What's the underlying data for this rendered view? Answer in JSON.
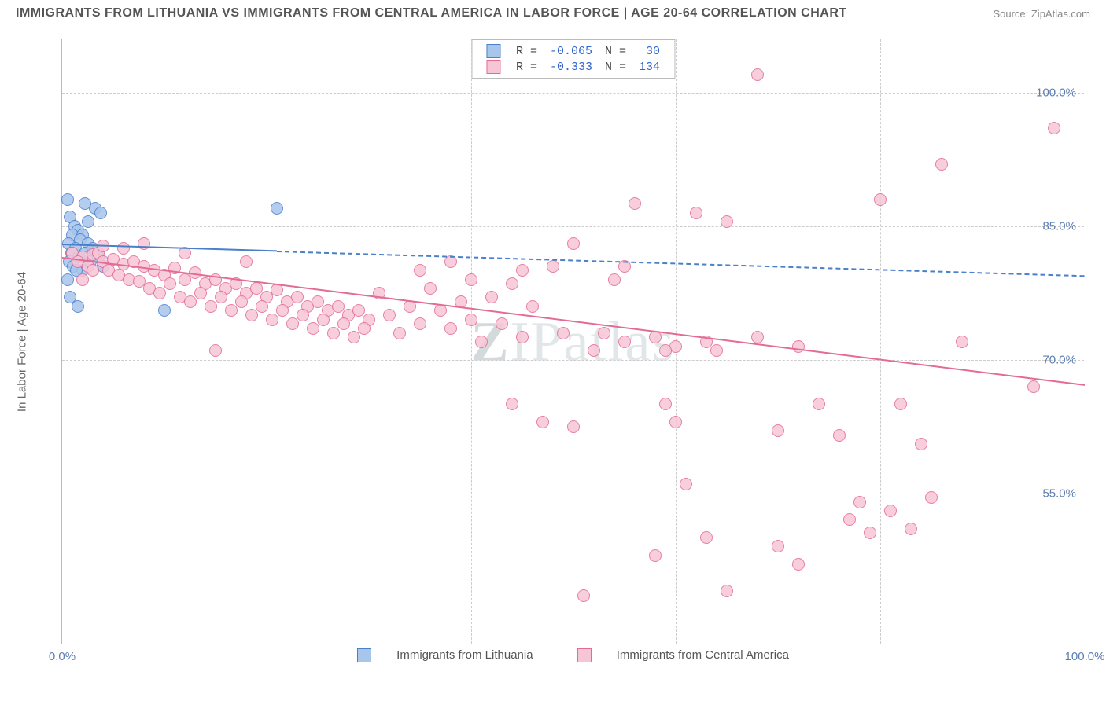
{
  "header": {
    "title": "IMMIGRANTS FROM LITHUANIA VS IMMIGRANTS FROM CENTRAL AMERICA IN LABOR FORCE | AGE 20-64 CORRELATION CHART",
    "source_prefix": "Source: ",
    "source_name": "ZipAtlas.com"
  },
  "watermark": {
    "z": "Z",
    "rest": "IPatlas"
  },
  "chart": {
    "type": "scatter",
    "y_axis_title": "In Labor Force | Age 20-64",
    "background_color": "#ffffff",
    "grid_color": "#cccccc",
    "axis_color": "#bbbbbb",
    "tick_label_color": "#5b7db1",
    "tick_fontsize": 15,
    "title_fontsize": 16,
    "title_color": "#555555",
    "xlim": [
      0,
      100
    ],
    "ylim": [
      38,
      106
    ],
    "xticks": [
      {
        "v": 0,
        "label": "0.0%"
      },
      {
        "v": 20,
        "label": ""
      },
      {
        "v": 40,
        "label": ""
      },
      {
        "v": 60,
        "label": ""
      },
      {
        "v": 80,
        "label": ""
      },
      {
        "v": 100,
        "label": "100.0%"
      }
    ],
    "yticks": [
      {
        "v": 55,
        "label": "55.0%"
      },
      {
        "v": 70,
        "label": "70.0%"
      },
      {
        "v": 85,
        "label": "85.0%"
      },
      {
        "v": 100,
        "label": "100.0%"
      }
    ],
    "marker_radius": 8,
    "marker_border_width": 1.5,
    "marker_fill_opacity": 0.25,
    "series": [
      {
        "id": "lithuania",
        "name": "Immigrants from Lithuania",
        "color_border": "#4a7fc9",
        "color_fill": "#a8c5ec",
        "correlation_R": "-0.065",
        "N": "30",
        "trend": {
          "x1": 0,
          "y1": 83.0,
          "x2": 100,
          "y2": 79.5,
          "solid_until_x": 21,
          "line_width": 2.5
        },
        "points": [
          {
            "x": 0.5,
            "y": 88
          },
          {
            "x": 0.8,
            "y": 86
          },
          {
            "x": 1.2,
            "y": 85
          },
          {
            "x": 1.5,
            "y": 84.5
          },
          {
            "x": 1.0,
            "y": 84
          },
          {
            "x": 2.0,
            "y": 84
          },
          {
            "x": 1.8,
            "y": 83.5
          },
          {
            "x": 0.6,
            "y": 83
          },
          {
            "x": 2.5,
            "y": 83
          },
          {
            "x": 1.3,
            "y": 82.5
          },
          {
            "x": 0.9,
            "y": 82
          },
          {
            "x": 2.2,
            "y": 82
          },
          {
            "x": 3.0,
            "y": 82.5
          },
          {
            "x": 1.6,
            "y": 81.5
          },
          {
            "x": 0.7,
            "y": 81
          },
          {
            "x": 2.8,
            "y": 81
          },
          {
            "x": 3.5,
            "y": 81.5
          },
          {
            "x": 1.1,
            "y": 80.5
          },
          {
            "x": 2.0,
            "y": 80
          },
          {
            "x": 4.0,
            "y": 80.5
          },
          {
            "x": 1.4,
            "y": 80
          },
          {
            "x": 0.5,
            "y": 79
          },
          {
            "x": 3.2,
            "y": 87
          },
          {
            "x": 3.8,
            "y": 86.5
          },
          {
            "x": 2.2,
            "y": 87.5
          },
          {
            "x": 21,
            "y": 87
          },
          {
            "x": 1.5,
            "y": 76
          },
          {
            "x": 10,
            "y": 75.5
          },
          {
            "x": 0.8,
            "y": 77
          },
          {
            "x": 2.5,
            "y": 85.5
          }
        ]
      },
      {
        "id": "central_america",
        "name": "Immigrants from Central America",
        "color_border": "#e36b94",
        "color_fill": "#f7c6d6",
        "correlation_R": "-0.333",
        "N": "134",
        "trend": {
          "x1": 0,
          "y1": 81.5,
          "x2": 100,
          "y2": 67.2,
          "solid_until_x": 100,
          "line_width": 2.5
        },
        "points": [
          {
            "x": 1,
            "y": 82
          },
          {
            "x": 2,
            "y": 81.5
          },
          {
            "x": 3,
            "y": 81.8
          },
          {
            "x": 1.5,
            "y": 81
          },
          {
            "x": 2.5,
            "y": 80.5
          },
          {
            "x": 3.5,
            "y": 82
          },
          {
            "x": 4,
            "y": 81
          },
          {
            "x": 5,
            "y": 81.3
          },
          {
            "x": 4.5,
            "y": 80
          },
          {
            "x": 6,
            "y": 80.7
          },
          {
            "x": 5.5,
            "y": 79.5
          },
          {
            "x": 7,
            "y": 81
          },
          {
            "x": 6.5,
            "y": 79
          },
          {
            "x": 8,
            "y": 80.5
          },
          {
            "x": 7.5,
            "y": 78.8
          },
          {
            "x": 9,
            "y": 80
          },
          {
            "x": 8.5,
            "y": 78
          },
          {
            "x": 10,
            "y": 79.5
          },
          {
            "x": 9.5,
            "y": 77.5
          },
          {
            "x": 11,
            "y": 80.3
          },
          {
            "x": 10.5,
            "y": 78.5
          },
          {
            "x": 12,
            "y": 79
          },
          {
            "x": 11.5,
            "y": 77
          },
          {
            "x": 13,
            "y": 79.8
          },
          {
            "x": 12.5,
            "y": 76.5
          },
          {
            "x": 14,
            "y": 78.5
          },
          {
            "x": 13.5,
            "y": 77.5
          },
          {
            "x": 15,
            "y": 79
          },
          {
            "x": 14.5,
            "y": 76
          },
          {
            "x": 16,
            "y": 78
          },
          {
            "x": 15.5,
            "y": 77
          },
          {
            "x": 17,
            "y": 78.5
          },
          {
            "x": 16.5,
            "y": 75.5
          },
          {
            "x": 18,
            "y": 77.5
          },
          {
            "x": 17.5,
            "y": 76.5
          },
          {
            "x": 19,
            "y": 78
          },
          {
            "x": 18.5,
            "y": 75
          },
          {
            "x": 20,
            "y": 77
          },
          {
            "x": 19.5,
            "y": 76
          },
          {
            "x": 21,
            "y": 77.8
          },
          {
            "x": 20.5,
            "y": 74.5
          },
          {
            "x": 22,
            "y": 76.5
          },
          {
            "x": 21.5,
            "y": 75.5
          },
          {
            "x": 23,
            "y": 77
          },
          {
            "x": 22.5,
            "y": 74
          },
          {
            "x": 24,
            "y": 76
          },
          {
            "x": 23.5,
            "y": 75
          },
          {
            "x": 25,
            "y": 76.5
          },
          {
            "x": 24.5,
            "y": 73.5
          },
          {
            "x": 26,
            "y": 75.5
          },
          {
            "x": 25.5,
            "y": 74.5
          },
          {
            "x": 27,
            "y": 76
          },
          {
            "x": 26.5,
            "y": 73
          },
          {
            "x": 28,
            "y": 75
          },
          {
            "x": 27.5,
            "y": 74
          },
          {
            "x": 29,
            "y": 75.5
          },
          {
            "x": 28.5,
            "y": 72.5
          },
          {
            "x": 30,
            "y": 74.5
          },
          {
            "x": 29.5,
            "y": 73.5
          },
          {
            "x": 31,
            "y": 77.5
          },
          {
            "x": 32,
            "y": 75
          },
          {
            "x": 33,
            "y": 73
          },
          {
            "x": 34,
            "y": 76
          },
          {
            "x": 35,
            "y": 74
          },
          {
            "x": 36,
            "y": 78
          },
          {
            "x": 37,
            "y": 75.5
          },
          {
            "x": 38,
            "y": 73.5
          },
          {
            "x": 39,
            "y": 76.5
          },
          {
            "x": 40,
            "y": 74.5
          },
          {
            "x": 41,
            "y": 72
          },
          {
            "x": 42,
            "y": 77
          },
          {
            "x": 43,
            "y": 74
          },
          {
            "x": 44,
            "y": 78.5
          },
          {
            "x": 45,
            "y": 80
          },
          {
            "x": 46,
            "y": 76
          },
          {
            "x": 44,
            "y": 65
          },
          {
            "x": 48,
            "y": 80.5
          },
          {
            "x": 49,
            "y": 73
          },
          {
            "x": 50,
            "y": 83
          },
          {
            "x": 45,
            "y": 72.5
          },
          {
            "x": 52,
            "y": 71
          },
          {
            "x": 47,
            "y": 63
          },
          {
            "x": 54,
            "y": 79
          },
          {
            "x": 55,
            "y": 72
          },
          {
            "x": 50,
            "y": 62.5
          },
          {
            "x": 56,
            "y": 87.5
          },
          {
            "x": 58,
            "y": 72.5
          },
          {
            "x": 59,
            "y": 65
          },
          {
            "x": 60,
            "y": 71.5
          },
          {
            "x": 51,
            "y": 43.5
          },
          {
            "x": 62,
            "y": 86.5
          },
          {
            "x": 63,
            "y": 72
          },
          {
            "x": 60,
            "y": 63
          },
          {
            "x": 61,
            "y": 56
          },
          {
            "x": 58,
            "y": 48
          },
          {
            "x": 65,
            "y": 85.5
          },
          {
            "x": 64,
            "y": 71
          },
          {
            "x": 68,
            "y": 72.5
          },
          {
            "x": 63,
            "y": 50
          },
          {
            "x": 65,
            "y": 44
          },
          {
            "x": 70,
            "y": 62
          },
          {
            "x": 68,
            "y": 102
          },
          {
            "x": 72,
            "y": 71.5
          },
          {
            "x": 74,
            "y": 65
          },
          {
            "x": 70,
            "y": 49
          },
          {
            "x": 76,
            "y": 61.5
          },
          {
            "x": 72,
            "y": 47
          },
          {
            "x": 78,
            "y": 54
          },
          {
            "x": 80,
            "y": 88
          },
          {
            "x": 77,
            "y": 52
          },
          {
            "x": 82,
            "y": 65
          },
          {
            "x": 79,
            "y": 50.5
          },
          {
            "x": 84,
            "y": 60.5
          },
          {
            "x": 81,
            "y": 53
          },
          {
            "x": 86,
            "y": 92
          },
          {
            "x": 83,
            "y": 51
          },
          {
            "x": 88,
            "y": 72
          },
          {
            "x": 85,
            "y": 54.5
          },
          {
            "x": 97,
            "y": 96
          },
          {
            "x": 95,
            "y": 67
          },
          {
            "x": 15,
            "y": 71
          },
          {
            "x": 18,
            "y": 81
          },
          {
            "x": 8,
            "y": 83
          },
          {
            "x": 12,
            "y": 82
          },
          {
            "x": 6,
            "y": 82.5
          },
          {
            "x": 4,
            "y": 82.8
          },
          {
            "x": 3,
            "y": 80
          },
          {
            "x": 2,
            "y": 79
          },
          {
            "x": 35,
            "y": 80
          },
          {
            "x": 38,
            "y": 81
          },
          {
            "x": 40,
            "y": 79
          },
          {
            "x": 55,
            "y": 80.5
          },
          {
            "x": 59,
            "y": 71
          },
          {
            "x": 53,
            "y": 73
          }
        ]
      }
    ],
    "legend_top_labels": {
      "R_label": "R =",
      "N_label": "N ="
    },
    "legend_bottom": [
      {
        "series": "lithuania"
      },
      {
        "series": "central_america"
      }
    ]
  }
}
